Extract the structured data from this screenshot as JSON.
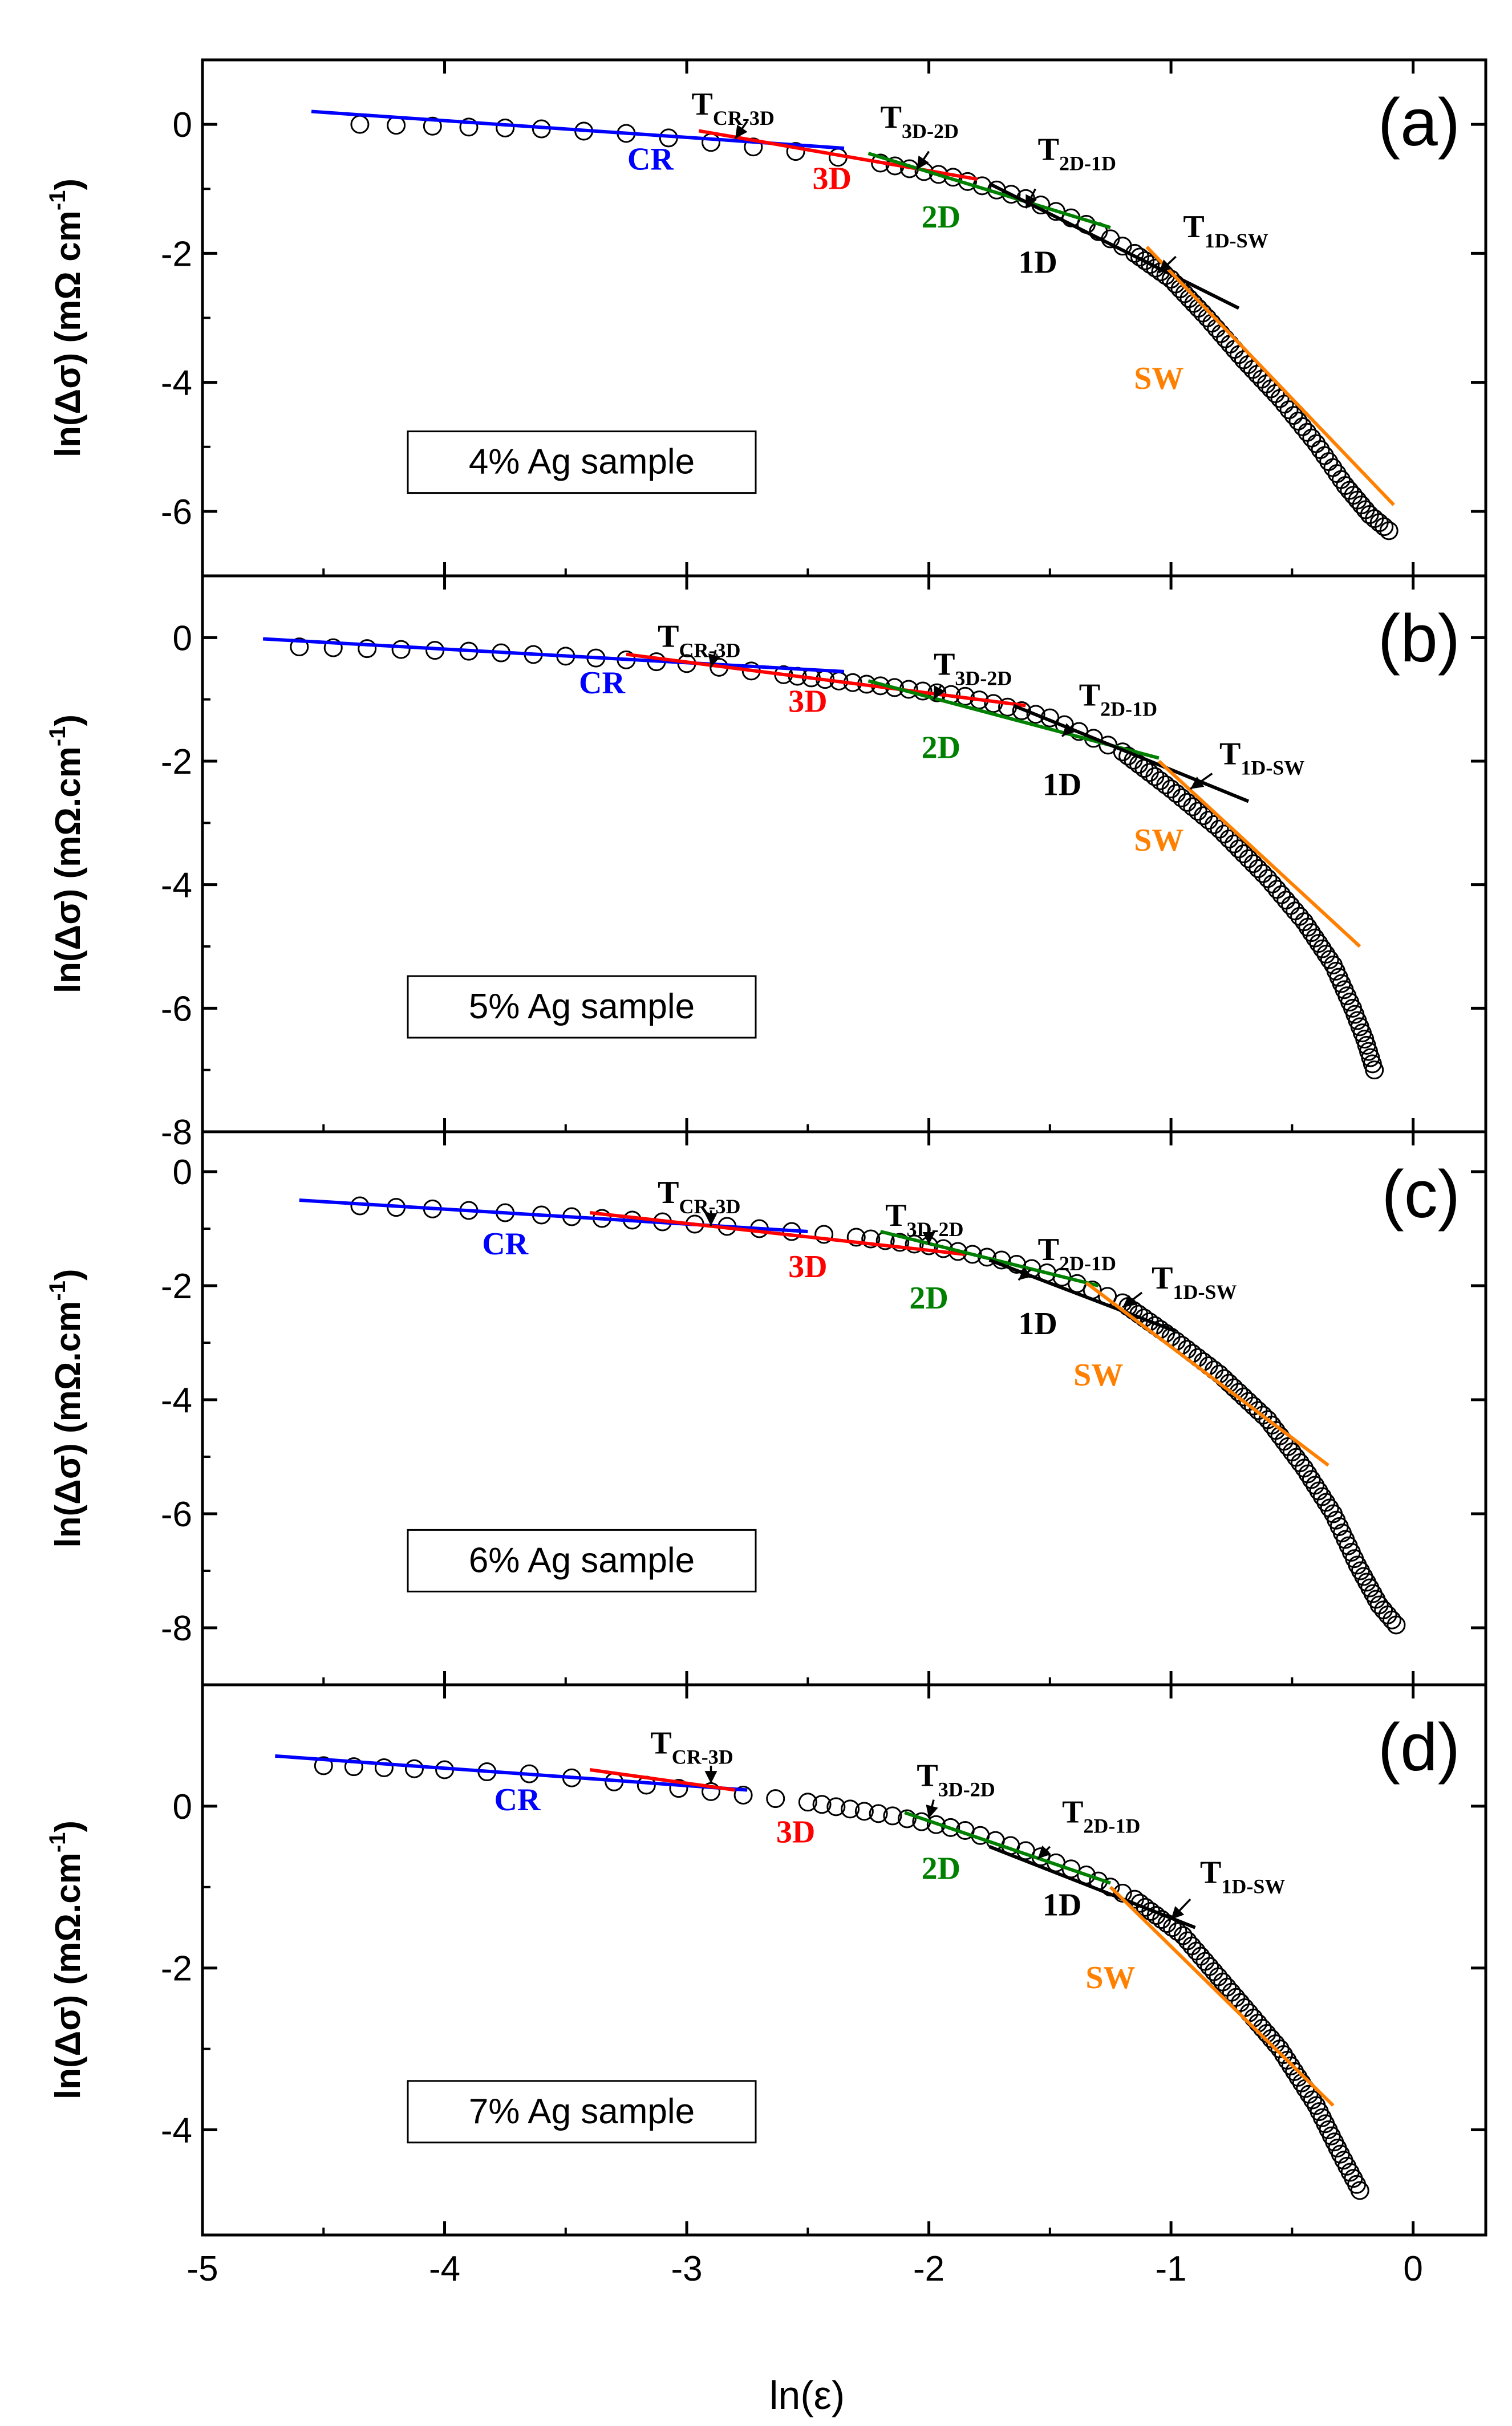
{
  "chart_data": {
    "type": "scatter",
    "xlabel": "ln(ε)",
    "x_ticks": [
      "-5",
      "-4",
      "-3",
      "-2",
      "-1",
      "0"
    ],
    "xlim": [
      -5,
      0.3
    ],
    "colors": {
      "CR": "#0000ff",
      "3D": "#ff0000",
      "2D": "#008000",
      "1D": "#000000",
      "SW": "#ff8000"
    },
    "panels": [
      {
        "label": "(a)",
        "ylabel": "ln(Δσ)  (mΩ cm⁻¹)",
        "ylabel_unit": "cm",
        "ylabel_exp": "-1",
        "ylim": [
          -7,
          1
        ],
        "y_ticks": [
          0,
          -2,
          -4,
          -6
        ],
        "y_tick_labels": [
          "0",
          "-2",
          "-4",
          "-6"
        ],
        "sample": "4% Ag sample",
        "anchors": [
          [
            -4.35,
            0.0
          ],
          [
            -3.6,
            -0.07
          ],
          [
            -3.25,
            -0.14
          ],
          [
            -2.9,
            -0.28
          ],
          [
            -2.55,
            -0.42
          ],
          [
            -2.2,
            -0.6
          ],
          [
            -1.9,
            -0.82
          ],
          [
            -1.6,
            -1.15
          ],
          [
            -1.35,
            -1.55
          ],
          [
            -1.15,
            -2.0
          ],
          [
            -1.0,
            -2.4
          ],
          [
            -0.85,
            -3.0
          ],
          [
            -0.7,
            -3.65
          ],
          [
            -0.55,
            -4.25
          ],
          [
            -0.4,
            -4.95
          ],
          [
            -0.28,
            -5.6
          ],
          [
            -0.18,
            -6.05
          ],
          [
            -0.1,
            -6.3
          ]
        ],
        "fits": [
          {
            "regime": "CR",
            "x1": -4.55,
            "y1": 0.2,
            "x2": -2.35,
            "y2": -0.37
          },
          {
            "regime": "3D",
            "x1": -2.95,
            "y1": -0.1,
            "x2": -1.8,
            "y2": -0.85
          },
          {
            "regime": "2D",
            "x1": -2.25,
            "y1": -0.45,
            "x2": -1.25,
            "y2": -1.6
          },
          {
            "regime": "1D",
            "x1": -1.75,
            "y1": -0.92,
            "x2": -0.72,
            "y2": -2.85
          },
          {
            "regime": "SW",
            "x1": -1.1,
            "y1": -1.9,
            "x2": -0.08,
            "y2": -5.9
          }
        ],
        "regime_labels": [
          {
            "text": "CR",
            "regime": "CR",
            "x": -3.15,
            "y": -0.7
          },
          {
            "text": "3D",
            "regime": "3D",
            "x": -2.4,
            "y": -1.0
          },
          {
            "text": "2D",
            "regime": "2D",
            "x": -1.95,
            "y": -1.6
          },
          {
            "text": "1D",
            "regime": "1D",
            "x": -1.55,
            "y": -2.3
          },
          {
            "text": "SW",
            "regime": "SW",
            "x": -1.05,
            "y": -4.1
          }
        ],
        "transitions": [
          {
            "main": "T",
            "sub": "CR-3D",
            "x": -2.98,
            "y": 0.15,
            "ax": -2.75,
            "ay": 0.05,
            "bx": -2.8,
            "by": -0.22
          },
          {
            "main": "T",
            "sub": "3D-2D",
            "x": -2.2,
            "y": -0.05,
            "ax": -2.0,
            "ay": -0.42,
            "bx": -2.05,
            "by": -0.7
          },
          {
            "main": "T",
            "sub": "2D-1D",
            "x": -1.55,
            "y": -0.55,
            "ax": -1.56,
            "ay": -1.0,
            "bx": -1.6,
            "by": -1.3
          },
          {
            "main": "T",
            "sub": "1D-SW",
            "x": -0.95,
            "y": -1.75,
            "ax": -0.98,
            "ay": -2.05,
            "bx": -1.05,
            "by": -2.3
          }
        ]
      },
      {
        "label": "(b)",
        "ylabel": "ln(Δσ)  (mΩ.cm⁻¹)",
        "ylabel_unit": "cm",
        "ylabel_exp": "-1",
        "ylim": [
          -8,
          1
        ],
        "y_ticks": [
          0,
          -2,
          -4,
          -6,
          -8
        ],
        "y_tick_labels": [
          "0",
          "-2",
          "-4",
          "-6",
          "-8"
        ],
        "sample": "5% Ag sample",
        "anchors": [
          [
            -4.6,
            -0.15
          ],
          [
            -3.9,
            -0.22
          ],
          [
            -3.5,
            -0.3
          ],
          [
            -3.0,
            -0.42
          ],
          [
            -2.6,
            -0.6
          ],
          [
            -2.2,
            -0.78
          ],
          [
            -1.85,
            -0.95
          ],
          [
            -1.5,
            -1.3
          ],
          [
            -1.2,
            -1.85
          ],
          [
            -1.0,
            -2.45
          ],
          [
            -0.8,
            -3.1
          ],
          [
            -0.6,
            -3.9
          ],
          [
            -0.45,
            -4.6
          ],
          [
            -0.33,
            -5.3
          ],
          [
            -0.25,
            -6.0
          ],
          [
            -0.2,
            -6.5
          ],
          [
            -0.16,
            -7.0
          ]
        ],
        "fits": [
          {
            "regime": "CR",
            "x1": -4.75,
            "y1": -0.02,
            "x2": -2.35,
            "y2": -0.55
          },
          {
            "regime": "3D",
            "x1": -3.25,
            "y1": -0.27,
            "x2": -1.6,
            "y2": -1.1
          },
          {
            "regime": "2D",
            "x1": -2.25,
            "y1": -0.7,
            "x2": -1.05,
            "y2": -1.95
          },
          {
            "regime": "1D",
            "x1": -1.65,
            "y1": -1.1,
            "x2": -0.68,
            "y2": -2.65
          },
          {
            "regime": "SW",
            "x1": -1.05,
            "y1": -2.0,
            "x2": -0.22,
            "y2": -5.0
          }
        ],
        "regime_labels": [
          {
            "text": "CR",
            "regime": "CR",
            "x": -3.35,
            "y": -0.9
          },
          {
            "text": "3D",
            "regime": "3D",
            "x": -2.5,
            "y": -1.2
          },
          {
            "text": "2D",
            "regime": "2D",
            "x": -1.95,
            "y": -1.95
          },
          {
            "text": "1D",
            "regime": "1D",
            "x": -1.45,
            "y": -2.55
          },
          {
            "text": "SW",
            "regime": "SW",
            "x": -1.05,
            "y": -3.45
          }
        ],
        "transitions": [
          {
            "main": "T",
            "sub": "CR-3D",
            "x": -3.12,
            "y": -0.15,
            "ax": -2.88,
            "ay": -0.2,
            "bx": -2.9,
            "by": -0.48
          },
          {
            "main": "T",
            "sub": "3D-2D",
            "x": -1.98,
            "y": -0.6,
            "ax": -1.95,
            "ay": -0.78,
            "bx": -1.98,
            "by": -1.0
          },
          {
            "main": "T",
            "sub": "2D-1D",
            "x": -1.38,
            "y": -1.1,
            "ax": -1.4,
            "ay": -1.4,
            "bx": -1.45,
            "by": -1.6
          },
          {
            "main": "T",
            "sub": "1D-SW",
            "x": -0.8,
            "y": -2.05,
            "ax": -0.83,
            "ay": -2.2,
            "bx": -0.92,
            "by": -2.45
          }
        ]
      },
      {
        "label": "(c)",
        "ylabel": "ln(Δσ)  (mΩ.cm⁻¹)",
        "ylabel_unit": "cm",
        "ylabel_exp": "-1",
        "ylim": [
          -9,
          0.7
        ],
        "y_ticks": [
          0,
          -2,
          -4,
          -6,
          -8
        ],
        "y_tick_labels": [
          "0",
          "-2",
          "-4",
          "-6",
          "-8"
        ],
        "sample": "6% Ag sample",
        "anchors": [
          [
            -4.35,
            -0.6
          ],
          [
            -3.9,
            -0.68
          ],
          [
            -3.6,
            -0.76
          ],
          [
            -3.1,
            -0.88
          ],
          [
            -2.7,
            -1.0
          ],
          [
            -2.3,
            -1.15
          ],
          [
            -2.0,
            -1.3
          ],
          [
            -1.7,
            -1.55
          ],
          [
            -1.45,
            -1.85
          ],
          [
            -1.2,
            -2.3
          ],
          [
            -1.0,
            -2.9
          ],
          [
            -0.8,
            -3.55
          ],
          [
            -0.6,
            -4.35
          ],
          [
            -0.45,
            -5.2
          ],
          [
            -0.33,
            -6.0
          ],
          [
            -0.23,
            -6.9
          ],
          [
            -0.14,
            -7.6
          ],
          [
            -0.07,
            -7.95
          ]
        ],
        "fits": [
          {
            "regime": "CR",
            "x1": -4.6,
            "y1": -0.5,
            "x2": -2.5,
            "y2": -1.05
          },
          {
            "regime": "3D",
            "x1": -3.4,
            "y1": -0.72,
            "x2": -1.85,
            "y2": -1.45
          },
          {
            "regime": "2D",
            "x1": -2.2,
            "y1": -1.05,
            "x2": -1.3,
            "y2": -2.0
          },
          {
            "regime": "1D",
            "x1": -1.75,
            "y1": -1.55,
            "x2": -0.98,
            "y2": -2.8
          },
          {
            "regime": "SW",
            "x1": -1.35,
            "y1": -1.95,
            "x2": -0.35,
            "y2": -5.15
          }
        ],
        "regime_labels": [
          {
            "text": "CR",
            "regime": "CR",
            "x": -3.75,
            "y": -1.45
          },
          {
            "text": "3D",
            "regime": "3D",
            "x": -2.5,
            "y": -1.85
          },
          {
            "text": "2D",
            "regime": "2D",
            "x": -2.0,
            "y": -2.4
          },
          {
            "text": "1D",
            "regime": "1D",
            "x": -1.55,
            "y": -2.85
          },
          {
            "text": "SW",
            "regime": "SW",
            "x": -1.3,
            "y": -3.75
          }
        ],
        "transitions": [
          {
            "main": "T",
            "sub": "CR-3D",
            "x": -3.12,
            "y": -0.55,
            "ax": -2.9,
            "ay": -0.68,
            "bx": -2.9,
            "by": -0.95
          },
          {
            "main": "T",
            "sub": "3D-2D",
            "x": -2.18,
            "y": -0.95,
            "ax": -2.0,
            "ay": -1.05,
            "bx": -2.0,
            "by": -1.28
          },
          {
            "main": "T",
            "sub": "2D-1D",
            "x": -1.55,
            "y": -1.55,
            "ax": -1.58,
            "ay": -1.72,
            "bx": -1.63,
            "by": -1.9
          },
          {
            "main": "T",
            "sub": "1D-SW",
            "x": -1.08,
            "y": -2.05,
            "ax": -1.12,
            "ay": -2.12,
            "bx": -1.2,
            "by": -2.38
          }
        ]
      },
      {
        "label": "(d)",
        "ylabel": "ln(Δσ)  (mΩ.cm⁻¹)",
        "ylabel_unit": "cm",
        "ylabel_exp": "-1",
        "ylim": [
          -5.3,
          1.5
        ],
        "y_ticks": [
          0,
          -2,
          -4
        ],
        "y_tick_labels": [
          "0",
          "-2",
          "-4"
        ],
        "sample": "7% Ag sample",
        "anchors": [
          [
            -4.5,
            0.5
          ],
          [
            -4.0,
            0.45
          ],
          [
            -3.65,
            0.4
          ],
          [
            -3.3,
            0.3
          ],
          [
            -2.9,
            0.18
          ],
          [
            -2.5,
            0.05
          ],
          [
            -2.15,
            -0.12
          ],
          [
            -1.85,
            -0.3
          ],
          [
            -1.6,
            -0.55
          ],
          [
            -1.35,
            -0.85
          ],
          [
            -1.15,
            -1.15
          ],
          [
            -0.95,
            -1.6
          ],
          [
            -0.75,
            -2.3
          ],
          [
            -0.55,
            -3.0
          ],
          [
            -0.4,
            -3.7
          ],
          [
            -0.3,
            -4.3
          ],
          [
            -0.22,
            -4.75
          ]
        ],
        "fits": [
          {
            "regime": "CR",
            "x1": -4.7,
            "y1": 0.62,
            "x2": -2.75,
            "y2": 0.2
          },
          {
            "regime": "3D",
            "x1": -3.4,
            "y1": 0.45,
            "x2": -2.8,
            "y2": 0.2
          },
          {
            "regime": "2D",
            "x1": -2.1,
            "y1": -0.08,
            "x2": -1.25,
            "y2": -0.95
          },
          {
            "regime": "1D",
            "x1": -1.75,
            "y1": -0.5,
            "x2": -0.9,
            "y2": -1.5
          },
          {
            "regime": "SW",
            "x1": -1.25,
            "y1": -1.0,
            "x2": -0.33,
            "y2": -3.7
          }
        ],
        "regime_labels": [
          {
            "text": "CR",
            "regime": "CR",
            "x": -3.7,
            "y": -0.05
          },
          {
            "text": "3D",
            "regime": "3D",
            "x": -2.55,
            "y": -0.45
          },
          {
            "text": "2D",
            "regime": "2D",
            "x": -1.95,
            "y": -0.9
          },
          {
            "text": "1D",
            "regime": "1D",
            "x": -1.45,
            "y": -1.35
          },
          {
            "text": "SW",
            "regime": "SW",
            "x": -1.25,
            "y": -2.25
          }
        ],
        "transitions": [
          {
            "main": "T",
            "sub": "CR-3D",
            "x": -3.15,
            "y": 0.65,
            "ax": -2.9,
            "ay": 0.5,
            "bx": -2.9,
            "by": 0.28
          },
          {
            "main": "T",
            "sub": "3D-2D",
            "x": -2.05,
            "y": 0.25,
            "ax": -1.98,
            "ay": 0.08,
            "bx": -2.0,
            "by": -0.15
          },
          {
            "main": "T",
            "sub": "2D-1D",
            "x": -1.45,
            "y": -0.2,
            "ax": -1.5,
            "ay": -0.5,
            "bx": -1.55,
            "by": -0.65
          },
          {
            "main": "T",
            "sub": "1D-SW",
            "x": -0.88,
            "y": -0.95,
            "ax": -0.92,
            "ay": -1.15,
            "bx": -1.0,
            "by": -1.4
          }
        ]
      }
    ]
  }
}
